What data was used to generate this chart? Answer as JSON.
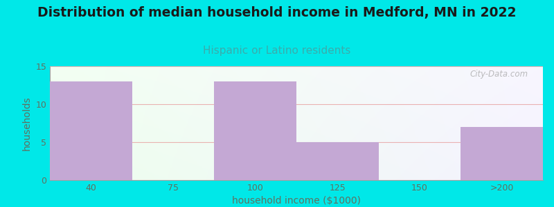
{
  "title": "Distribution of median household income in Medford, MN in 2022",
  "subtitle": "Hispanic or Latino residents",
  "xlabel": "household income ($1000)",
  "ylabel": "households",
  "categories": [
    "40",
    "75",
    "100",
    "125",
    "150",
    ">200"
  ],
  "values": [
    13,
    0,
    13,
    5,
    0,
    7
  ],
  "bar_color": "#c4a8d4",
  "background_color": "#00e8e8",
  "title_fontsize": 13.5,
  "subtitle_fontsize": 11,
  "subtitle_color": "#3aacac",
  "xlabel_color": "#607060",
  "ylabel_color": "#607060",
  "tick_color": "#607060",
  "ylim": [
    0,
    15
  ],
  "yticks": [
    0,
    5,
    10,
    15
  ],
  "grid_color": "#e8a0a0",
  "watermark": "City-Data.com"
}
